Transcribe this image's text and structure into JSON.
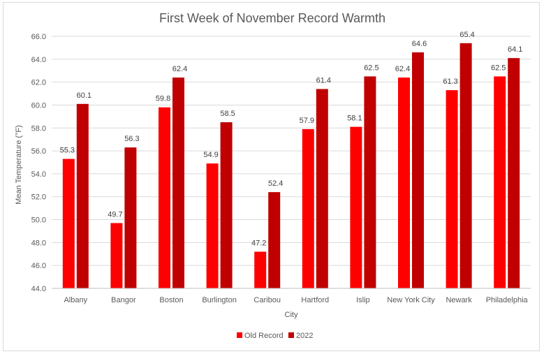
{
  "chart_data": {
    "type": "bar",
    "title": "First Week of November Record Warmth",
    "xlabel": "City",
    "ylabel": "Mean Temperature (°F)",
    "ylim": [
      44.0,
      66.0
    ],
    "ytick_step": 2.0,
    "yticks": [
      "44.0",
      "46.0",
      "48.0",
      "50.0",
      "52.0",
      "54.0",
      "56.0",
      "58.0",
      "60.0",
      "62.0",
      "64.0",
      "66.0"
    ],
    "grid": true,
    "legend_position": "bottom",
    "categories": [
      "Albany",
      "Bangor",
      "Boston",
      "Burlington",
      "Caribou",
      "Hartford",
      "Islip",
      "New York City",
      "Newark",
      "Philadelphia"
    ],
    "series": [
      {
        "name": "Old Record",
        "color": "#ff0000",
        "values": [
          55.3,
          49.7,
          59.8,
          54.9,
          47.2,
          57.9,
          58.1,
          62.4,
          61.3,
          62.5
        ]
      },
      {
        "name": "2022",
        "color": "#c00000",
        "values": [
          60.1,
          56.3,
          62.4,
          58.5,
          52.4,
          61.4,
          62.5,
          64.6,
          65.4,
          64.1
        ]
      }
    ]
  }
}
